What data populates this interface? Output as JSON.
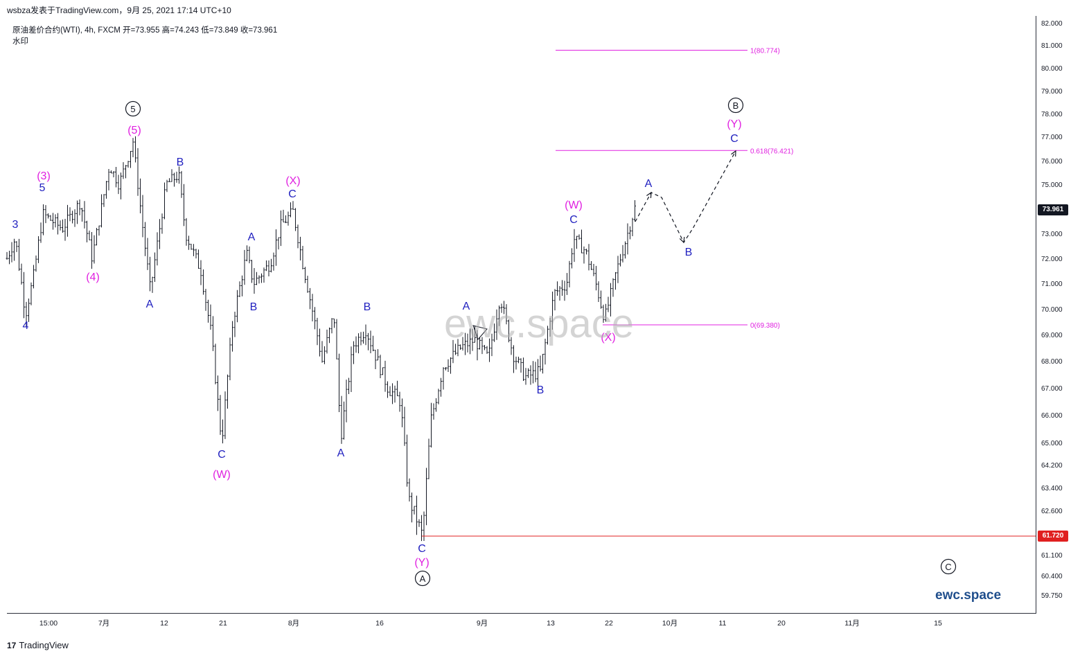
{
  "header": {
    "caption": "wsbza发表于TradingView.com，9月 25, 2021 17:14 UTC+10",
    "symbol_line": "原油差价合约(WTI), 4h, FXCM  开=73.955  高=74.243  低=73.849  收=73.961",
    "indicator_label": "水印"
  },
  "watermark": "ewc.space",
  "brand_url": "ewc.space",
  "footer": {
    "logo_text": "TradingView"
  },
  "colors": {
    "wave_blue": "#1f1fbf",
    "wave_magenta": "#e020e0",
    "fib": "#e020e0",
    "support": "#e02020",
    "bars": "#131722"
  },
  "price_tags": {
    "current": "73.961",
    "support": "61.720"
  },
  "chart_data": {
    "type": "ohlc",
    "ylim": [
      59.5,
      82.3
    ],
    "y_ticks": [
      "82.000",
      "81.000",
      "80.000",
      "79.000",
      "78.000",
      "77.000",
      "76.000",
      "75.000",
      "74.000",
      "73.000",
      "72.000",
      "71.000",
      "70.000",
      "69.000",
      "68.000",
      "67.000",
      "66.000",
      "65.000",
      "64.200",
      "63.400",
      "62.600",
      "61.100",
      "60.400",
      "59.750"
    ],
    "x_ticks": [
      "15:00",
      "7月",
      "12",
      "21",
      "8月",
      "16",
      "9月",
      "13",
      "22",
      "10月",
      "11",
      "20",
      "11月",
      "15"
    ],
    "fib_levels": [
      {
        "label": "1(80.774)",
        "value": 80.774
      },
      {
        "label": "0.618(76.421)",
        "value": 76.421
      },
      {
        "label": "0(69.380)",
        "value": 69.38
      }
    ],
    "support_level": 61.72,
    "current_price": 73.961,
    "wave_labels_blue": [
      "3",
      "4",
      "5",
      "A",
      "B",
      "C",
      "A",
      "B",
      "C",
      "A",
      "B",
      "C",
      "A",
      "B",
      "C",
      "A",
      "B",
      "C"
    ],
    "wave_labels_magenta": [
      "(3)",
      "(4)",
      "(5)",
      "(W)",
      "(X)",
      "(Y)",
      "(W)",
      "(X)",
      "(Y)"
    ],
    "wave_labels_circled": [
      "5",
      "A",
      "B",
      "C"
    ],
    "projection_labels": [
      "A",
      "B",
      "C"
    ],
    "bar_count": 260
  }
}
